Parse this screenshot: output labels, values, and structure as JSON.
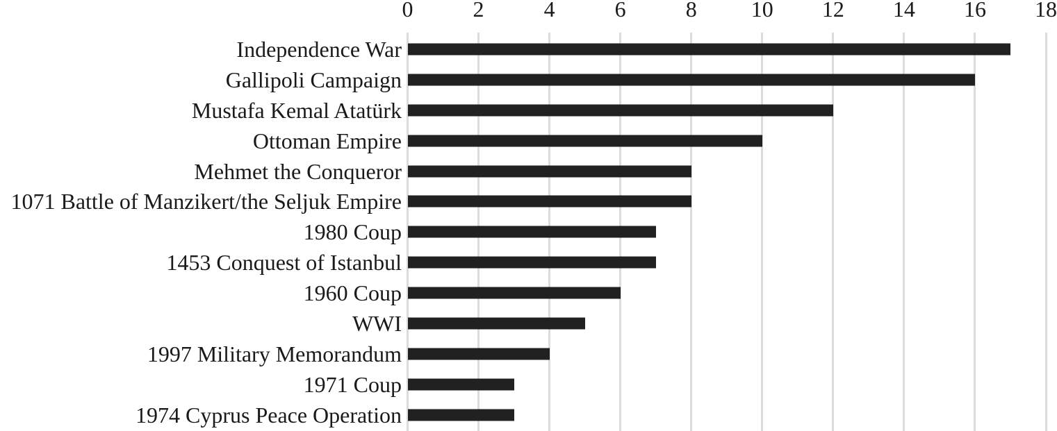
{
  "chart_data": {
    "type": "bar",
    "orientation": "horizontal",
    "title": "",
    "xlabel": "",
    "ylabel": "",
    "xlim": [
      0,
      18
    ],
    "x_ticks": [
      0,
      2,
      4,
      6,
      8,
      10,
      12,
      14,
      16,
      18
    ],
    "tick_position": "top",
    "grid": true,
    "legend": false,
    "categories": [
      "Independence War",
      "Gallipoli Campaign",
      "Mustafa Kemal Atatürk",
      "Ottoman Empire",
      "Mehmet the Conqueror",
      "1071 Battle of Manzikert/the Seljuk Empire",
      "1980 Coup",
      "1453 Conquest of Istanbul",
      "1960 Coup",
      "WWI",
      "1997 Military Memorandum",
      "1971 Coup",
      "1974 Cyprus Peace Operation"
    ],
    "values": [
      17,
      16,
      12,
      10,
      8,
      8,
      7,
      7,
      6,
      5,
      4,
      3,
      3
    ],
    "colors": {
      "bar": "#212121",
      "gridline": "#dcdcdc",
      "text": "#1a1a1a",
      "background": "#ffffff"
    }
  }
}
